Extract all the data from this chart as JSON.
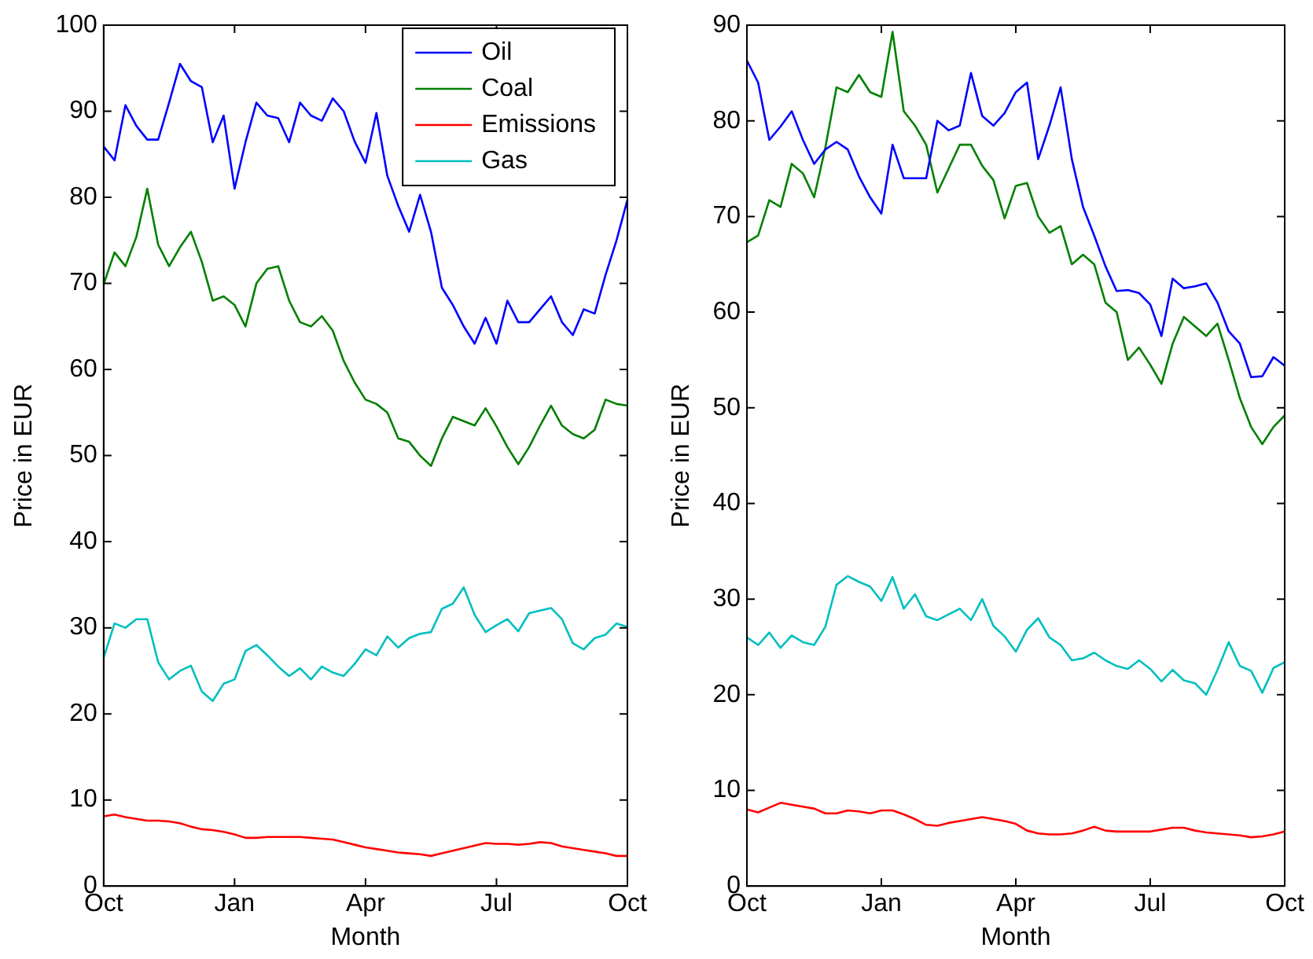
{
  "chart_data": [
    {
      "type": "line",
      "xlabel": "Month",
      "ylabel": "Price in EUR",
      "categories": [
        "Oct",
        null,
        null,
        null,
        null,
        null,
        null,
        null,
        null,
        null,
        null,
        null,
        "Jan",
        null,
        null,
        null,
        null,
        null,
        null,
        null,
        null,
        null,
        null,
        null,
        "Apr",
        null,
        null,
        null,
        null,
        null,
        null,
        null,
        null,
        null,
        null,
        null,
        "Jul",
        null,
        null,
        null,
        null,
        null,
        null,
        null,
        null,
        null,
        null,
        null,
        "Oct"
      ],
      "ylim": [
        0,
        100
      ],
      "yticks": [
        0,
        10,
        20,
        30,
        40,
        50,
        60,
        70,
        80,
        90,
        100
      ],
      "grid": false,
      "legend": "top right",
      "series": [
        {
          "name": "Oil",
          "color": "#0000ff",
          "values": [
            85.9,
            84.3,
            90.7,
            88.3,
            86.7,
            86.7,
            91,
            95.5,
            93.5,
            92.8,
            86.4,
            89.5,
            81,
            86.4,
            91,
            89.5,
            89.2,
            86.4,
            91,
            89.5,
            88.9,
            91.5,
            90,
            86.5,
            84,
            89.8,
            82.5,
            79,
            76,
            80.3,
            76,
            69.5,
            67.5,
            65,
            63,
            66,
            63,
            68,
            65.5,
            65.5,
            67,
            68.5,
            65.5,
            64,
            67,
            66.5,
            71,
            75,
            79.7
          ]
        },
        {
          "name": "Coal",
          "color": "#008000",
          "values": [
            69.9,
            73.6,
            72,
            75.4,
            81,
            74.5,
            72,
            74.2,
            76,
            72.5,
            68,
            68.5,
            67.5,
            65,
            70,
            71.7,
            72,
            68,
            65.5,
            65,
            66.2,
            64.5,
            61,
            58.5,
            56.5,
            56,
            55,
            52,
            51.6,
            50,
            48.8,
            52,
            54.5,
            54,
            53.5,
            55.5,
            53.4,
            51,
            49,
            51,
            53.5,
            55.8,
            53.5,
            52.5,
            52,
            53,
            56.5,
            56,
            55.8
          ]
        },
        {
          "name": "Emissions",
          "color": "#ff0000",
          "values": [
            8.1,
            8.3,
            8,
            7.8,
            7.6,
            7.6,
            7.5,
            7.3,
            6.9,
            6.6,
            6.5,
            6.3,
            6,
            5.6,
            5.6,
            5.7,
            5.7,
            5.7,
            5.7,
            5.6,
            5.5,
            5.4,
            5.1,
            4.8,
            4.5,
            4.3,
            4.1,
            3.9,
            3.8,
            3.7,
            3.5,
            3.8,
            4.1,
            4.4,
            4.7,
            5,
            4.9,
            4.9,
            4.8,
            4.9,
            5.1,
            5,
            4.6,
            4.4,
            4.2,
            4,
            3.8,
            3.5,
            3.5
          ]
        },
        {
          "name": "Gas",
          "color": "#00bfbf",
          "values": [
            26.5,
            30.5,
            30,
            31,
            31,
            26,
            24,
            25,
            25.6,
            22.6,
            21.5,
            23.5,
            24,
            27.3,
            28,
            26.8,
            25.5,
            24.4,
            25.3,
            24,
            25.5,
            24.8,
            24.4,
            25.8,
            27.5,
            26.8,
            29,
            27.7,
            28.8,
            29.3,
            29.5,
            32.2,
            32.8,
            34.7,
            31.5,
            29.5,
            30.3,
            31,
            29.6,
            31.7,
            32,
            32.3,
            31,
            28.2,
            27.5,
            28.8,
            29.2,
            30.5,
            30.1
          ]
        }
      ]
    },
    {
      "type": "line",
      "xlabel": "Month",
      "ylabel": "Price in EUR",
      "categories": [
        "Oct",
        null,
        null,
        null,
        null,
        null,
        null,
        null,
        null,
        null,
        null,
        null,
        "Jan",
        null,
        null,
        null,
        null,
        null,
        null,
        null,
        null,
        null,
        null,
        null,
        "Apr",
        null,
        null,
        null,
        null,
        null,
        null,
        null,
        null,
        null,
        null,
        null,
        "Jul",
        null,
        null,
        null,
        null,
        null,
        null,
        null,
        null,
        null,
        null,
        null,
        "Oct"
      ],
      "ylim": [
        0,
        90
      ],
      "yticks": [
        0,
        10,
        20,
        30,
        40,
        50,
        60,
        70,
        80,
        90
      ],
      "grid": false,
      "series": [
        {
          "color": "#0000ff",
          "values": [
            86.3,
            84,
            78,
            79.4,
            81,
            78,
            75.5,
            77,
            77.8,
            77,
            74.2,
            72,
            70.3,
            77.5,
            74,
            74,
            74,
            80,
            79,
            79.5,
            85,
            80.5,
            79.5,
            80.8,
            83,
            84,
            76,
            79.5,
            83.5,
            76,
            71,
            68,
            64.8,
            62.2,
            62.3,
            62,
            60.8,
            57.5,
            63.5,
            62.5,
            62.7,
            63,
            61,
            58,
            56.7,
            53.2,
            53.3,
            55.3,
            54.4
          ]
        },
        {
          "color": "#008000",
          "values": [
            67.3,
            68,
            71.7,
            71,
            75.5,
            74.5,
            72,
            77.2,
            83.5,
            83,
            84.8,
            83,
            82.5,
            89.3,
            81,
            79.5,
            77.5,
            72.5,
            75,
            77.5,
            77.5,
            75.3,
            73.8,
            69.8,
            73.2,
            73.5,
            70,
            68.3,
            69,
            65,
            66,
            65,
            61,
            60,
            55,
            56.3,
            54.5,
            52.5,
            56.7,
            59.5,
            58.5,
            57.5,
            58.8,
            55,
            51,
            48,
            46.2,
            48,
            49.2
          ]
        },
        {
          "color": "#ff0000",
          "values": [
            8,
            7.7,
            8.2,
            8.7,
            8.5,
            8.3,
            8.1,
            7.6,
            7.6,
            7.9,
            7.8,
            7.6,
            7.9,
            7.9,
            7.5,
            7,
            6.4,
            6.3,
            6.6,
            6.8,
            7,
            7.2,
            7,
            6.8,
            6.5,
            5.8,
            5.5,
            5.4,
            5.4,
            5.5,
            5.8,
            6.2,
            5.8,
            5.7,
            5.7,
            5.7,
            5.7,
            5.9,
            6.1,
            6.1,
            5.8,
            5.6,
            5.5,
            5.4,
            5.3,
            5.1,
            5.2,
            5.4,
            5.7
          ]
        },
        {
          "color": "#00bfbf",
          "values": [
            26,
            25.2,
            26.5,
            24.9,
            26.2,
            25.5,
            25.2,
            27.1,
            31.5,
            32.4,
            31.8,
            31.3,
            29.8,
            32.3,
            29,
            30.5,
            28.2,
            27.8,
            28.4,
            29,
            27.8,
            30,
            27.2,
            26.1,
            24.5,
            26.8,
            28,
            26,
            25.2,
            23.6,
            23.8,
            24.4,
            23.6,
            23,
            22.7,
            23.6,
            22.7,
            21.4,
            22.6,
            21.5,
            21.2,
            20,
            22.6,
            25.5,
            23,
            22.5,
            20.2,
            22.8,
            23.4
          ]
        }
      ]
    }
  ]
}
